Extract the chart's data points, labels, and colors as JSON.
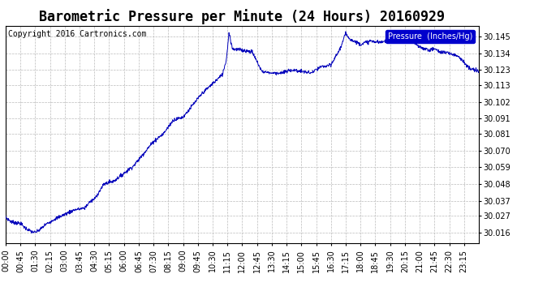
{
  "title": "Barometric Pressure per Minute (24 Hours) 20160929",
  "copyright": "Copyright 2016 Cartronics.com",
  "legend_label": "Pressure  (Inches/Hg)",
  "line_color": "#0000bb",
  "background_color": "#ffffff",
  "plot_bg_color": "#ffffff",
  "legend_bg_color": "#0000cc",
  "legend_text_color": "#ffffff",
  "grid_color": "#bbbbbb",
  "yticks": [
    30.016,
    30.027,
    30.037,
    30.048,
    30.059,
    30.07,
    30.081,
    30.091,
    30.102,
    30.113,
    30.123,
    30.134,
    30.145
  ],
  "ylim": [
    30.009,
    30.152
  ],
  "xtick_labels": [
    "00:00",
    "00:45",
    "01:30",
    "02:15",
    "03:00",
    "03:45",
    "04:30",
    "05:15",
    "06:00",
    "06:45",
    "07:30",
    "08:15",
    "09:00",
    "09:45",
    "10:30",
    "11:15",
    "12:00",
    "12:45",
    "13:30",
    "14:15",
    "15:00",
    "15:45",
    "16:30",
    "17:15",
    "18:00",
    "18:45",
    "19:30",
    "20:15",
    "21:00",
    "21:45",
    "22:30",
    "23:15"
  ],
  "title_fontsize": 12,
  "tick_fontsize": 7,
  "copyright_fontsize": 7,
  "ctrl_t": [
    0,
    0.3,
    0.75,
    1.0,
    1.25,
    1.5,
    1.75,
    2.0,
    2.5,
    3.0,
    3.5,
    4.0,
    4.25,
    4.5,
    5.0,
    5.25,
    5.5,
    6.0,
    6.5,
    7.0,
    7.5,
    8.0,
    8.5,
    9.0,
    9.5,
    10.0,
    10.5,
    11.0,
    11.2,
    11.33,
    11.5,
    12.0,
    12.5,
    13.0,
    13.5,
    14.0,
    14.5,
    15.0,
    15.5,
    16.0,
    16.5,
    17.0,
    17.25,
    17.5,
    18.0,
    18.5,
    19.0,
    19.5,
    20.0,
    20.25,
    20.5,
    21.0,
    21.5,
    21.75,
    22.0,
    22.5,
    22.75,
    23.0,
    23.5,
    24.0
  ],
  "ctrl_p": [
    30.026,
    30.023,
    30.022,
    30.019,
    30.017,
    30.016,
    30.018,
    30.021,
    30.025,
    30.028,
    30.031,
    30.032,
    30.036,
    30.038,
    30.048,
    30.049,
    30.05,
    30.055,
    30.06,
    30.068,
    30.076,
    30.081,
    30.09,
    30.092,
    30.1,
    30.108,
    30.114,
    30.12,
    30.13,
    30.148,
    30.137,
    30.136,
    30.135,
    30.122,
    30.121,
    30.121,
    30.123,
    30.122,
    30.121,
    30.125,
    30.126,
    30.138,
    30.147,
    30.143,
    30.14,
    30.142,
    30.141,
    30.143,
    30.145,
    30.148,
    30.143,
    30.138,
    30.136,
    30.137,
    30.135,
    30.134,
    30.133,
    30.132,
    30.124,
    30.122
  ]
}
